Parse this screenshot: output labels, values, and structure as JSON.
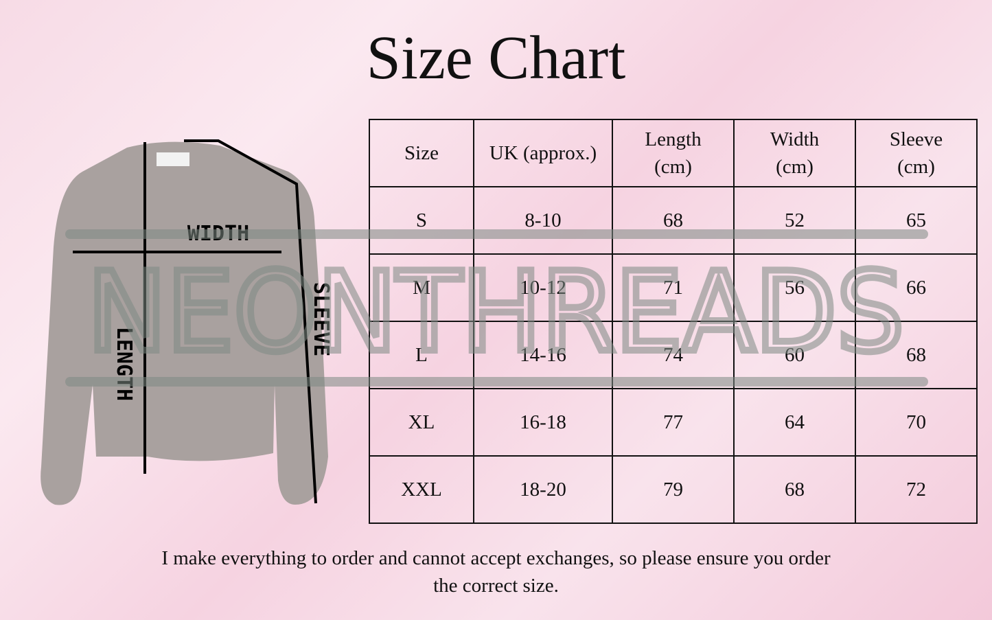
{
  "title": "Size Chart",
  "diagram": {
    "labels": {
      "width": "WIDTH",
      "length": "LENGTH",
      "sleeve": "SLEEVE"
    }
  },
  "watermark": "NEONTHREADS",
  "table": {
    "headers": [
      [
        "Size"
      ],
      [
        "UK (approx.)"
      ],
      [
        "Length",
        "(cm)"
      ],
      [
        "Width",
        "(cm)"
      ],
      [
        "Sleeve",
        "(cm)"
      ]
    ],
    "rows": [
      [
        "S",
        "8-10",
        "68",
        "52",
        "65"
      ],
      [
        "M",
        "10-12",
        "71",
        "56",
        "66"
      ],
      [
        "L",
        "14-16",
        "74",
        "60",
        "68"
      ],
      [
        "XL",
        "16-18",
        "77",
        "64",
        "70"
      ],
      [
        "XXL",
        "18-20",
        "79",
        "68",
        "72"
      ]
    ]
  },
  "footer": {
    "line1": "I make everything to order and cannot accept exchanges, so please ensure you order",
    "line2": "the correct size."
  },
  "colors": {
    "sweatshirt": "#a9a19f",
    "watermark": "#8f9a94"
  }
}
